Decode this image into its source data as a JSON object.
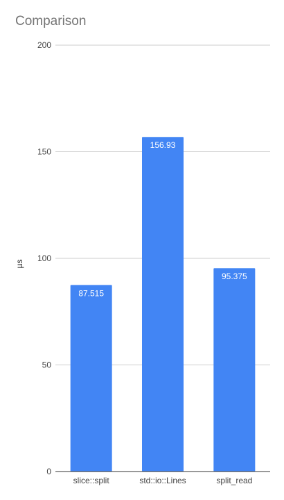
{
  "chart_data": {
    "type": "bar",
    "title": "Comparison",
    "xlabel": "",
    "ylabel": "µs",
    "categories": [
      "slice::split",
      "std::io::Lines",
      "split_read"
    ],
    "values": [
      87.515,
      156.93,
      95.375
    ],
    "value_labels": [
      "87.515",
      "156.93",
      "95.375"
    ],
    "ylim": [
      0,
      200
    ],
    "yticks": [
      0,
      50,
      100,
      150,
      200
    ],
    "grid": true,
    "legend": "none",
    "bar_color": "#4285f4"
  }
}
